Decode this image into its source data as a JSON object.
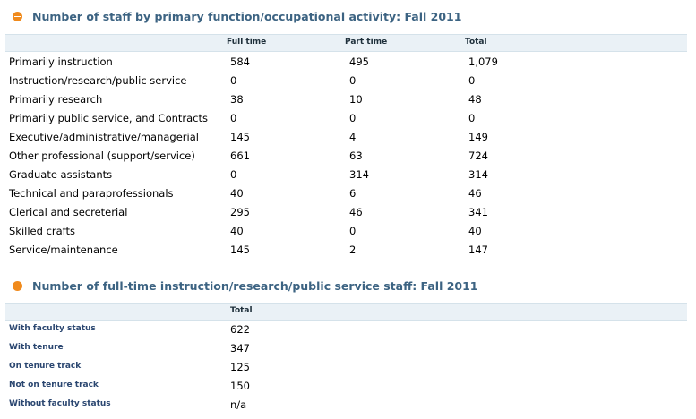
{
  "staff_by_function": {
    "title": "Number of staff by primary function/occupational activity: Fall 2011",
    "columns": [
      "Full time",
      "Part time",
      "Total"
    ],
    "rows": [
      {
        "label": "Primarily instruction",
        "full_time": "584",
        "part_time": "495",
        "total": "1,079"
      },
      {
        "label": "Instruction/research/public service",
        "full_time": "0",
        "part_time": "0",
        "total": "0"
      },
      {
        "label": "Primarily research",
        "full_time": "38",
        "part_time": "10",
        "total": "48"
      },
      {
        "label": "Primarily public service, and Contracts",
        "full_time": "0",
        "part_time": "0",
        "total": "0"
      },
      {
        "label": "Executive/administrative/managerial",
        "full_time": "145",
        "part_time": "4",
        "total": "149"
      },
      {
        "label": "Other professional (support/service)",
        "full_time": "661",
        "part_time": "63",
        "total": "724"
      },
      {
        "label": "Graduate assistants",
        "full_time": "0",
        "part_time": "314",
        "total": "314"
      },
      {
        "label": "Technical and paraprofessionals",
        "full_time": "40",
        "part_time": "6",
        "total": "46"
      },
      {
        "label": "Clerical and secreterial",
        "full_time": "295",
        "part_time": "46",
        "total": "341"
      },
      {
        "label": "Skilled crafts",
        "full_time": "40",
        "part_time": "0",
        "total": "40"
      },
      {
        "label": "Service/maintenance",
        "full_time": "145",
        "part_time": "2",
        "total": "147"
      }
    ]
  },
  "fulltime_staff": {
    "title": "Number of full-time instruction/research/public service staff: Fall 2011",
    "columns": [
      "Total"
    ],
    "rows": [
      {
        "label": "With faculty status",
        "total": "622"
      },
      {
        "label": "With tenure",
        "total": "347"
      },
      {
        "label": "On tenure track",
        "total": "125"
      },
      {
        "label": "Not on tenure track",
        "total": "150"
      },
      {
        "label": "Without faculty status",
        "total": "n/a"
      }
    ]
  },
  "colors": {
    "title": "#3c6382",
    "icon": "#f08a1c",
    "header_bg": "#eaf1f6",
    "label2": "#2a4670"
  }
}
